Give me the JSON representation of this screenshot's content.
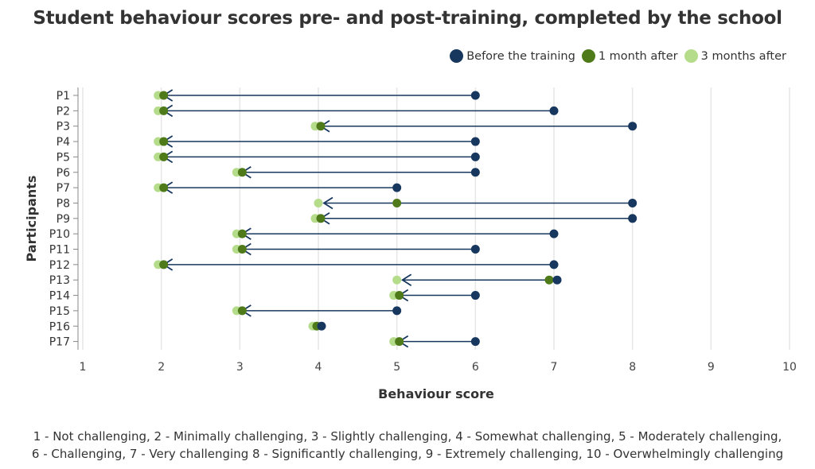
{
  "chart_data": {
    "type": "dumbbell",
    "title": "Student behaviour scores pre- and post-training, completed by the school",
    "xlabel": "Behaviour score",
    "ylabel": "Participants",
    "xlim": [
      1,
      10
    ],
    "xticks": [
      "1",
      "2",
      "3",
      "4",
      "5",
      "6",
      "7",
      "8",
      "9",
      "10"
    ],
    "grid": "vertical",
    "legend_position": "top-right",
    "categories": [
      "P1",
      "P2",
      "P3",
      "P4",
      "P5",
      "P6",
      "P7",
      "P8",
      "P9",
      "P10",
      "P11",
      "P12",
      "P13",
      "P14",
      "P15",
      "P16",
      "P17"
    ],
    "series": [
      {
        "name": "Before the training",
        "color": "#17375e",
        "values": [
          6,
          7,
          8,
          6,
          6,
          6,
          5,
          8,
          8,
          7,
          6,
          7,
          7,
          6,
          5,
          4,
          6
        ]
      },
      {
        "name": "1 month after",
        "color": "#4f7a1a",
        "values": [
          2,
          2,
          4,
          2,
          2,
          3,
          2,
          5,
          4,
          3,
          3,
          2,
          7,
          5,
          3,
          4,
          5
        ]
      },
      {
        "name": "3 months after",
        "color": "#b5dc8a",
        "values": [
          2,
          2,
          4,
          2,
          2,
          3,
          2,
          4,
          4,
          3,
          3,
          2,
          5,
          5,
          3,
          4,
          5
        ]
      }
    ],
    "footnote": [
      "1 - Not challenging, 2 - Minimally challenging, 3 - Slightly challenging, 4 - Somewhat challenging, 5 - Moderately challenging,",
      "6 - Challenging, 7 - Very challenging 8 - Significantly challenging, 9 - Extremely challenging, 10 - Overwhelmingly challenging"
    ]
  }
}
